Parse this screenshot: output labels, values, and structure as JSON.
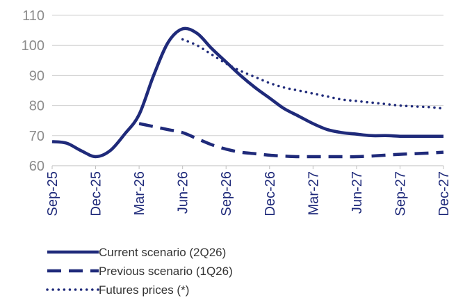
{
  "chart_data": {
    "type": "line",
    "title": "",
    "xlabel": "",
    "ylabel": "",
    "ylim": [
      60,
      110
    ],
    "yticks": [
      60,
      70,
      80,
      90,
      100,
      110
    ],
    "grid": "horizontal",
    "legend_placement": "bottom-left",
    "x_ticks": [
      "Sep-25",
      "Dec-25",
      "Mar-26",
      "Jun-26",
      "Sep-26",
      "Dec-26",
      "Mar-27",
      "Jun-27",
      "Sep-27",
      "Dec-27"
    ],
    "series": [
      {
        "name": "Current scenario (2Q26)",
        "style": "solid",
        "color": "#1f2a7a",
        "x": [
          "Sep-25",
          "Oct-25",
          "Nov-25",
          "Dec-25",
          "Jan-26",
          "Feb-26",
          "Mar-26",
          "Apr-26",
          "May-26",
          "Jun-26",
          "Jul-26",
          "Aug-26",
          "Sep-26",
          "Oct-26",
          "Nov-26",
          "Dec-26",
          "Jan-27",
          "Feb-27",
          "Mar-27",
          "Apr-27",
          "May-27",
          "Jun-27",
          "Jul-27",
          "Aug-27",
          "Sep-27",
          "Oct-27",
          "Nov-27",
          "Dec-27"
        ],
        "values": [
          68,
          67.5,
          65,
          63,
          65,
          70.5,
          77,
          90,
          101,
          105.5,
          104,
          99,
          94.5,
          90,
          86,
          82.5,
          79,
          76.5,
          74,
          72,
          71,
          70.5,
          70,
          70,
          69.8,
          69.8,
          69.8,
          69.8
        ]
      },
      {
        "name": "Previous scenario (1Q26)",
        "style": "dashed",
        "color": "#1f2a7a",
        "x": [
          "Mar-26",
          "Apr-26",
          "May-26",
          "Jun-26",
          "Jul-26",
          "Aug-26",
          "Sep-26",
          "Oct-26",
          "Nov-26",
          "Dec-26",
          "Jan-27",
          "Feb-27",
          "Mar-27",
          "Apr-27",
          "May-27",
          "Jun-27",
          "Jul-27",
          "Aug-27",
          "Sep-27",
          "Oct-27",
          "Nov-27",
          "Dec-27"
        ],
        "values": [
          74,
          73,
          72,
          71,
          69,
          67,
          65.5,
          64.5,
          64,
          63.5,
          63.2,
          63,
          63,
          63,
          63,
          63,
          63.2,
          63.5,
          63.8,
          64,
          64.2,
          64.5
        ]
      },
      {
        "name": "Futures prices (*)",
        "style": "dotted",
        "color": "#1f2a7a",
        "x": [
          "Jun-26",
          "Jul-26",
          "Aug-26",
          "Sep-26",
          "Oct-26",
          "Nov-26",
          "Dec-26",
          "Jan-27",
          "Feb-27",
          "Mar-27",
          "Apr-27",
          "May-27",
          "Jun-27",
          "Jul-27",
          "Aug-27",
          "Sep-27",
          "Oct-27",
          "Nov-27",
          "Dec-27"
        ],
        "values": [
          102,
          100,
          97,
          94,
          91.5,
          89.5,
          87.5,
          86,
          85,
          84,
          83,
          82,
          81.5,
          81,
          80.5,
          80,
          79.7,
          79.5,
          79
        ]
      }
    ]
  }
}
